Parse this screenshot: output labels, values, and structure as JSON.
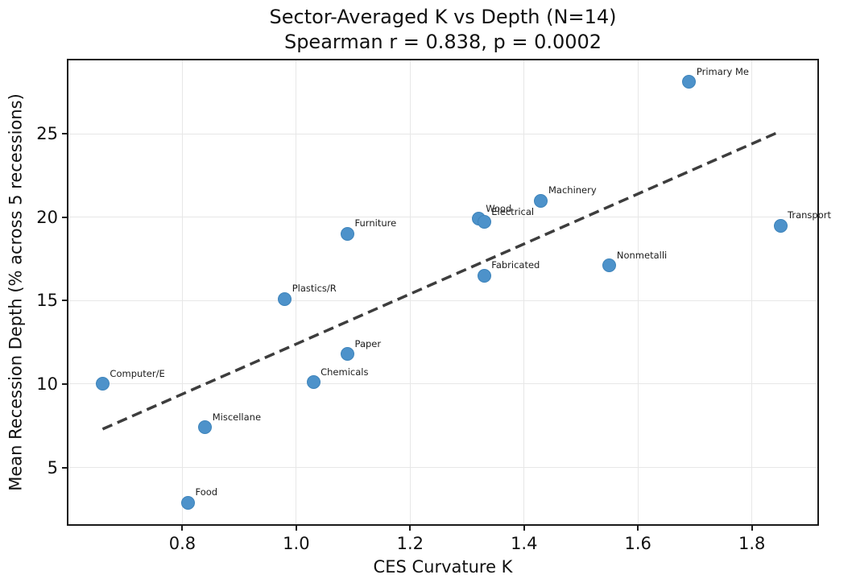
{
  "chart_data": {
    "type": "scatter",
    "title_line1": "Sector-Averaged K vs Depth (N=14)",
    "title_line2": "Spearman r = 0.838, p = 0.0002",
    "xlabel": "CES Curvature K",
    "ylabel": "Mean Recession Depth (% across 5 recessions)",
    "xlim": [
      0.6,
      1.915
    ],
    "ylim": [
      1.6,
      29.4
    ],
    "grid": true,
    "legend": "none",
    "xticks": [
      {
        "value": 0.8,
        "label": "0.8"
      },
      {
        "value": 1.0,
        "label": "1.0"
      },
      {
        "value": 1.2,
        "label": "1.2"
      },
      {
        "value": 1.4,
        "label": "1.4"
      },
      {
        "value": 1.6,
        "label": "1.6"
      },
      {
        "value": 1.8,
        "label": "1.8"
      }
    ],
    "yticks": [
      {
        "value": 5,
        "label": "5"
      },
      {
        "value": 10,
        "label": "10"
      },
      {
        "value": 15,
        "label": "15"
      },
      {
        "value": 20,
        "label": "20"
      },
      {
        "value": 25,
        "label": "25"
      }
    ],
    "points": [
      {
        "sector": "Computer/E",
        "k": 0.66,
        "depth": 10.0
      },
      {
        "sector": "Food",
        "k": 0.81,
        "depth": 2.9
      },
      {
        "sector": "Miscellane",
        "k": 0.84,
        "depth": 7.4
      },
      {
        "sector": "Plastics/R",
        "k": 0.98,
        "depth": 15.1
      },
      {
        "sector": "Chemicals",
        "k": 1.03,
        "depth": 10.1
      },
      {
        "sector": "Furniture",
        "k": 1.09,
        "depth": 19.0
      },
      {
        "sector": "Paper",
        "k": 1.09,
        "depth": 11.8
      },
      {
        "sector": "Wood",
        "k": 1.32,
        "depth": 19.9
      },
      {
        "sector": "Electrical",
        "k": 1.33,
        "depth": 19.7
      },
      {
        "sector": "Fabricated",
        "k": 1.33,
        "depth": 16.5
      },
      {
        "sector": "Machinery",
        "k": 1.43,
        "depth": 21.0
      },
      {
        "sector": "Nonmetalli",
        "k": 1.55,
        "depth": 17.1
      },
      {
        "sector": "Primary Me",
        "k": 1.69,
        "depth": 28.1
      },
      {
        "sector": "Transport",
        "k": 1.85,
        "depth": 19.5
      }
    ],
    "trendline": {
      "x1": 0.66,
      "y1": 7.3,
      "x2": 1.85,
      "y2": 25.15,
      "style": "dashed"
    },
    "colors": {
      "marker_fill": "#4d92ca",
      "marker_edge": "#3e84bb",
      "trend": "#3d3d3d",
      "grid": "#e7e7e7",
      "spine": "#1a1a1a",
      "text": "#111111"
    }
  }
}
